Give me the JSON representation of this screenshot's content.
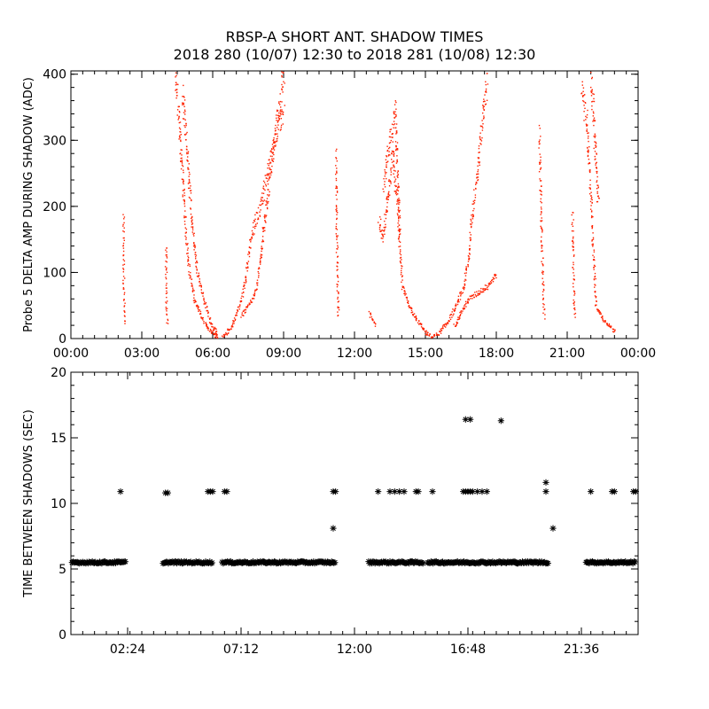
{
  "title_line1": "RBSP-A SHORT ANT. SHADOW TIMES",
  "title_line2": "2018 280 (10/07) 12:30 to 2018 281 (10/08) 12:30",
  "colors": {
    "top_points": "#ff2200",
    "bottom_points": "#000000",
    "axes": "#000000"
  },
  "chart_data": [
    {
      "type": "scatter",
      "title": "",
      "xlabel": "",
      "ylabel": "Probe 5 DELTA AMP DURING SHADOW (ADC)",
      "xlim": [
        0,
        24
      ],
      "ylim": [
        0,
        405
      ],
      "x_unit": "hours",
      "xticks": [
        {
          "value": 0,
          "label": "00:00"
        },
        {
          "value": 3,
          "label": "03:00"
        },
        {
          "value": 6,
          "label": "06:00"
        },
        {
          "value": 9,
          "label": "09:00"
        },
        {
          "value": 12,
          "label": "12:00"
        },
        {
          "value": 15,
          "label": "15:00"
        },
        {
          "value": 18,
          "label": "18:00"
        },
        {
          "value": 21,
          "label": "21:00"
        },
        {
          "value": 24,
          "label": "00:00"
        }
      ],
      "yticks": [
        0,
        100,
        200,
        300,
        400
      ],
      "series": [
        {
          "color": "#ff2200",
          "segments": [
            [
              [
                2.2,
                185
              ],
              [
                2.22,
                70
              ],
              [
                2.25,
                20
              ]
            ],
            [
              [
                4.0,
                145
              ],
              [
                4.02,
                60
              ],
              [
                4.05,
                20
              ]
            ],
            [
              [
                4.4,
                400
              ],
              [
                4.55,
                330
              ],
              [
                4.7,
                250
              ],
              [
                4.85,
                160
              ],
              [
                5.0,
                100
              ],
              [
                5.2,
                60
              ],
              [
                5.5,
                35
              ],
              [
                5.8,
                15
              ],
              [
                6.1,
                5
              ],
              [
                6.2,
                2
              ]
            ],
            [
              [
                4.7,
                370
              ],
              [
                4.9,
                280
              ],
              [
                5.1,
                180
              ],
              [
                5.3,
                110
              ],
              [
                5.6,
                60
              ],
              [
                5.9,
                25
              ],
              [
                6.2,
                5
              ]
            ],
            [
              [
                6.4,
                2
              ],
              [
                6.8,
                20
              ],
              [
                7.0,
                40
              ],
              [
                7.2,
                60
              ],
              [
                7.4,
                100
              ],
              [
                7.6,
                150
              ],
              [
                7.8,
                180
              ],
              [
                8.0,
                200
              ],
              [
                8.3,
                250
              ],
              [
                8.6,
                300
              ],
              [
                9.0,
                350
              ]
            ],
            [
              [
                7.2,
                35
              ],
              [
                7.5,
                50
              ],
              [
                7.8,
                70
              ],
              [
                8.0,
                120
              ],
              [
                8.5,
                280
              ],
              [
                9.0,
                400
              ]
            ],
            [
              [
                11.2,
                280
              ],
              [
                11.25,
                100
              ],
              [
                11.3,
                30
              ]
            ],
            [
              [
                12.6,
                40
              ],
              [
                12.9,
                20
              ]
            ],
            [
              [
                13.0,
                180
              ],
              [
                13.2,
                150
              ],
              [
                13.4,
                220
              ],
              [
                13.6,
                280
              ],
              [
                13.8,
                200
              ],
              [
                14.0,
                80
              ],
              [
                14.3,
                50
              ],
              [
                14.6,
                30
              ],
              [
                15.0,
                10
              ],
              [
                15.2,
                5
              ]
            ],
            [
              [
                13.2,
                230
              ],
              [
                13.5,
                300
              ],
              [
                13.7,
                350
              ],
              [
                13.9,
                150
              ]
            ],
            [
              [
                15.2,
                2
              ],
              [
                15.6,
                10
              ],
              [
                16.0,
                30
              ],
              [
                16.4,
                60
              ],
              [
                16.6,
                80
              ],
              [
                16.8,
                120
              ],
              [
                17.0,
                200
              ],
              [
                17.2,
                260
              ],
              [
                17.4,
                330
              ],
              [
                17.6,
                400
              ]
            ],
            [
              [
                16.2,
                20
              ],
              [
                16.5,
                40
              ],
              [
                16.8,
                60
              ],
              [
                17.2,
                70
              ],
              [
                17.6,
                80
              ],
              [
                18.0,
                100
              ]
            ],
            [
              [
                19.8,
                310
              ],
              [
                19.9,
                150
              ],
              [
                20.0,
                30
              ]
            ],
            [
              [
                21.2,
                190
              ],
              [
                21.25,
                80
              ],
              [
                21.3,
                30
              ]
            ],
            [
              [
                21.6,
                380
              ],
              [
                21.8,
                330
              ],
              [
                22.0,
                200
              ],
              [
                22.1,
                120
              ],
              [
                22.2,
                50
              ],
              [
                22.5,
                30
              ],
              [
                22.8,
                20
              ],
              [
                23.0,
                10
              ]
            ],
            [
              [
                22.0,
                400
              ],
              [
                22.15,
                300
              ],
              [
                22.3,
                200
              ]
            ]
          ]
        }
      ]
    },
    {
      "type": "scatter",
      "title": "",
      "xlabel": "",
      "ylabel": "TIME BETWEEN SHADOWS (SEC)",
      "xlim": [
        0,
        24
      ],
      "ylim": [
        0,
        20
      ],
      "x_unit": "hours",
      "xticks": [
        {
          "value": 2.4,
          "label": "02:24"
        },
        {
          "value": 7.2,
          "label": "07:12"
        },
        {
          "value": 12.0,
          "label": "12:00"
        },
        {
          "value": 16.8,
          "label": "16:48"
        },
        {
          "value": 21.6,
          "label": "21:36"
        }
      ],
      "yticks": [
        0,
        5,
        10,
        15,
        20
      ],
      "marker": "*",
      "baseline_runs": [
        {
          "start": 0.05,
          "end": 2.3,
          "y": 5.5
        },
        {
          "start": 3.9,
          "end": 6.0,
          "y": 5.5
        },
        {
          "start": 6.4,
          "end": 11.2,
          "y": 5.5
        },
        {
          "start": 12.6,
          "end": 14.9,
          "y": 5.5
        },
        {
          "start": 15.1,
          "end": 20.2,
          "y": 5.5
        },
        {
          "start": 21.8,
          "end": 23.9,
          "y": 5.5
        }
      ],
      "points": [
        [
          2.1,
          10.9
        ],
        [
          4.0,
          10.8
        ],
        [
          4.1,
          10.8
        ],
        [
          5.8,
          10.9
        ],
        [
          5.9,
          10.9
        ],
        [
          6.0,
          10.9
        ],
        [
          6.5,
          10.9
        ],
        [
          6.6,
          10.9
        ],
        [
          11.1,
          10.9
        ],
        [
          11.2,
          10.9
        ],
        [
          11.1,
          8.1
        ],
        [
          13.0,
          10.9
        ],
        [
          13.5,
          10.9
        ],
        [
          13.7,
          10.9
        ],
        [
          13.9,
          10.9
        ],
        [
          14.1,
          10.9
        ],
        [
          14.6,
          10.9
        ],
        [
          14.7,
          10.9
        ],
        [
          15.3,
          10.9
        ],
        [
          16.6,
          10.9
        ],
        [
          16.7,
          10.9
        ],
        [
          16.8,
          10.9
        ],
        [
          16.9,
          10.9
        ],
        [
          17.0,
          10.9
        ],
        [
          17.2,
          10.9
        ],
        [
          17.4,
          10.9
        ],
        [
          17.6,
          10.9
        ],
        [
          16.7,
          16.4
        ],
        [
          16.9,
          16.4
        ],
        [
          18.2,
          16.3
        ],
        [
          20.1,
          11.6
        ],
        [
          20.1,
          10.9
        ],
        [
          20.4,
          8.1
        ],
        [
          22.0,
          10.9
        ],
        [
          22.9,
          10.9
        ],
        [
          23.0,
          10.9
        ],
        [
          23.8,
          10.9
        ],
        [
          23.9,
          10.9
        ]
      ]
    }
  ]
}
